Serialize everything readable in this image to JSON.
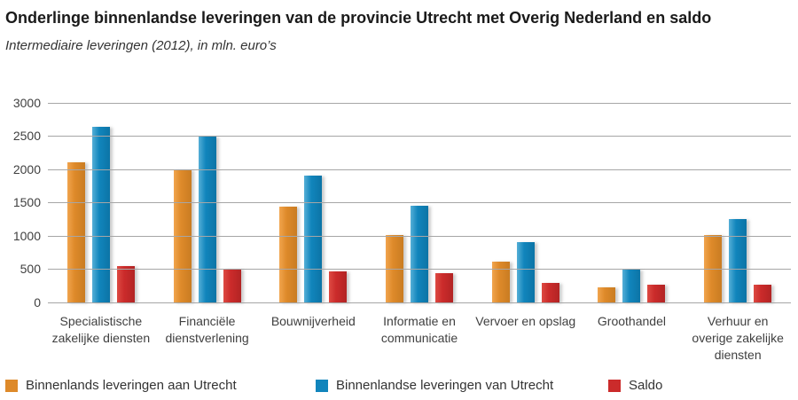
{
  "header": {
    "title": "Onderlinge binnenlandse leveringen van de provincie Utrecht met Overig Nederland en saldo",
    "subtitle": "Intermediaire leveringen (2012), in mln. euro’s"
  },
  "chart_data": {
    "type": "bar",
    "title": "Onderlinge binnenlandse leveringen van de provincie Utrecht met Overig Nederland en saldo",
    "subtitle": "Intermediaire leveringen (2012), in mln. euro’s",
    "categories": [
      "Specialistische zakelijke diensten",
      "Financiële dienstverlening",
      "Bouwnijverheid",
      "Informatie en communicatie",
      "Vervoer en opslag",
      "Groothandel",
      "Verhuur en overige zakelijke diensten"
    ],
    "series": [
      {
        "name": "Binnenlands leveringen aan Utrecht",
        "color": "#DE8A2A",
        "color_light": "#F1A54E",
        "color_dark": "#C97C22",
        "values": [
          2100,
          2000,
          1440,
          1010,
          610,
          230,
          1010
        ]
      },
      {
        "name": "Binnenlandse leveringen van Utrecht",
        "color": "#1185BC",
        "color_light": "#55AFD7",
        "color_dark": "#0C74A6",
        "values": [
          2640,
          2490,
          1900,
          1450,
          900,
          490,
          1250
        ]
      },
      {
        "name": "Saldo",
        "color": "#CB2B2B",
        "color_light": "#DD4A42",
        "color_dark": "#B22424",
        "values": [
          550,
          510,
          460,
          440,
          290,
          270,
          260
        ]
      }
    ],
    "xlabel": "",
    "ylabel": "mln. euro's",
    "ylim": [
      0,
      3000
    ],
    "yticks": [
      0,
      500,
      1000,
      1500,
      2000,
      2500,
      3000
    ],
    "grid": "horizontal",
    "legend_position": "bottom",
    "gridline_color": "#a6a6a6"
  }
}
